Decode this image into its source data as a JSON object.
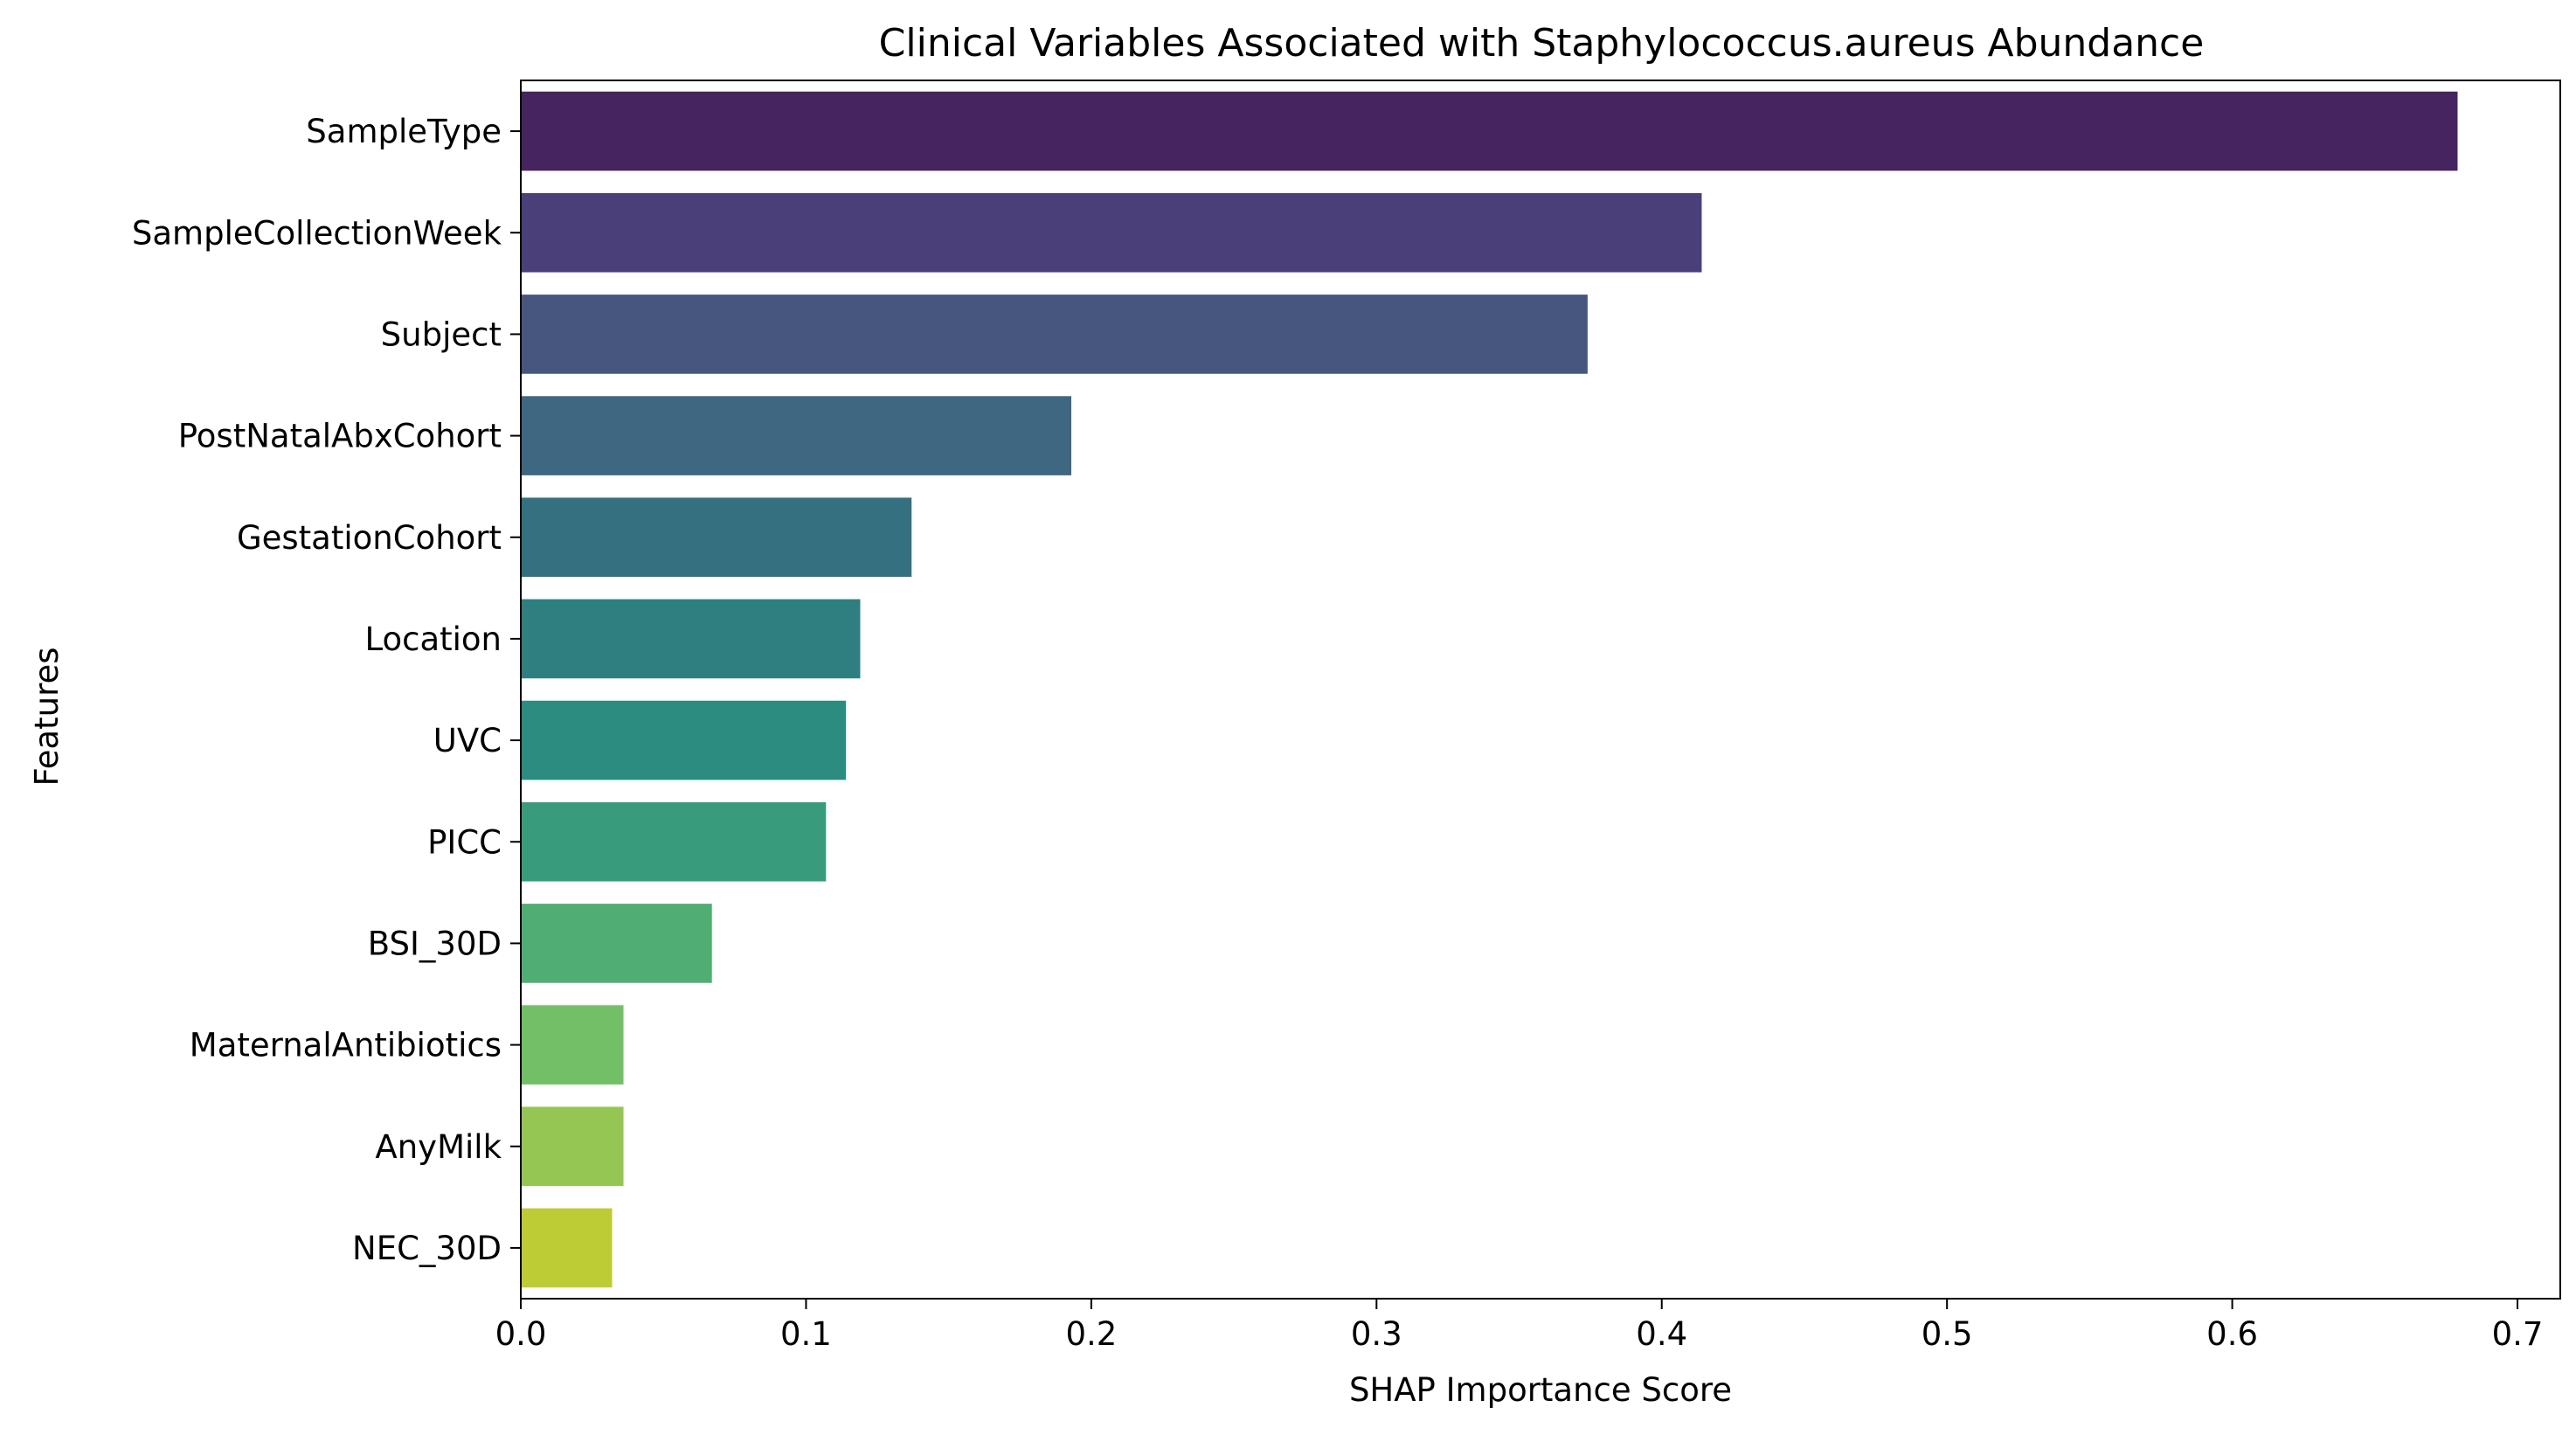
{
  "chart_data": {
    "type": "bar",
    "orientation": "horizontal",
    "title": "Clinical Variables Associated with Staphylococcus.aureus Abundance",
    "xlabel": "SHAP Importance Score",
    "ylabel": "Features",
    "xlim": [
      0,
      0.715
    ],
    "xticks": [
      0.0,
      0.1,
      0.2,
      0.3,
      0.4,
      0.5,
      0.6,
      0.7
    ],
    "xtick_labels": [
      "0.0",
      "0.1",
      "0.2",
      "0.3",
      "0.4",
      "0.5",
      "0.6",
      "0.7"
    ],
    "grid": false,
    "categories": [
      "SampleType",
      "SampleCollectionWeek",
      "Subject",
      "PostNatalAbxCohort",
      "GestationCohort",
      "Location",
      "UVC",
      "PICC",
      "BSI_30D",
      "MaternalAntibiotics",
      "AnyMilk",
      "NEC_30D"
    ],
    "values": [
      0.679,
      0.414,
      0.374,
      0.193,
      0.137,
      0.119,
      0.114,
      0.107,
      0.067,
      0.036,
      0.036,
      0.032
    ],
    "colors": [
      "#46245f",
      "#4a3f78",
      "#46567f",
      "#3e6782",
      "#357080",
      "#2f7f80",
      "#2c8c80",
      "#389c7c",
      "#51ae73",
      "#72bf67",
      "#95c553",
      "#bdcb34"
    ]
  }
}
